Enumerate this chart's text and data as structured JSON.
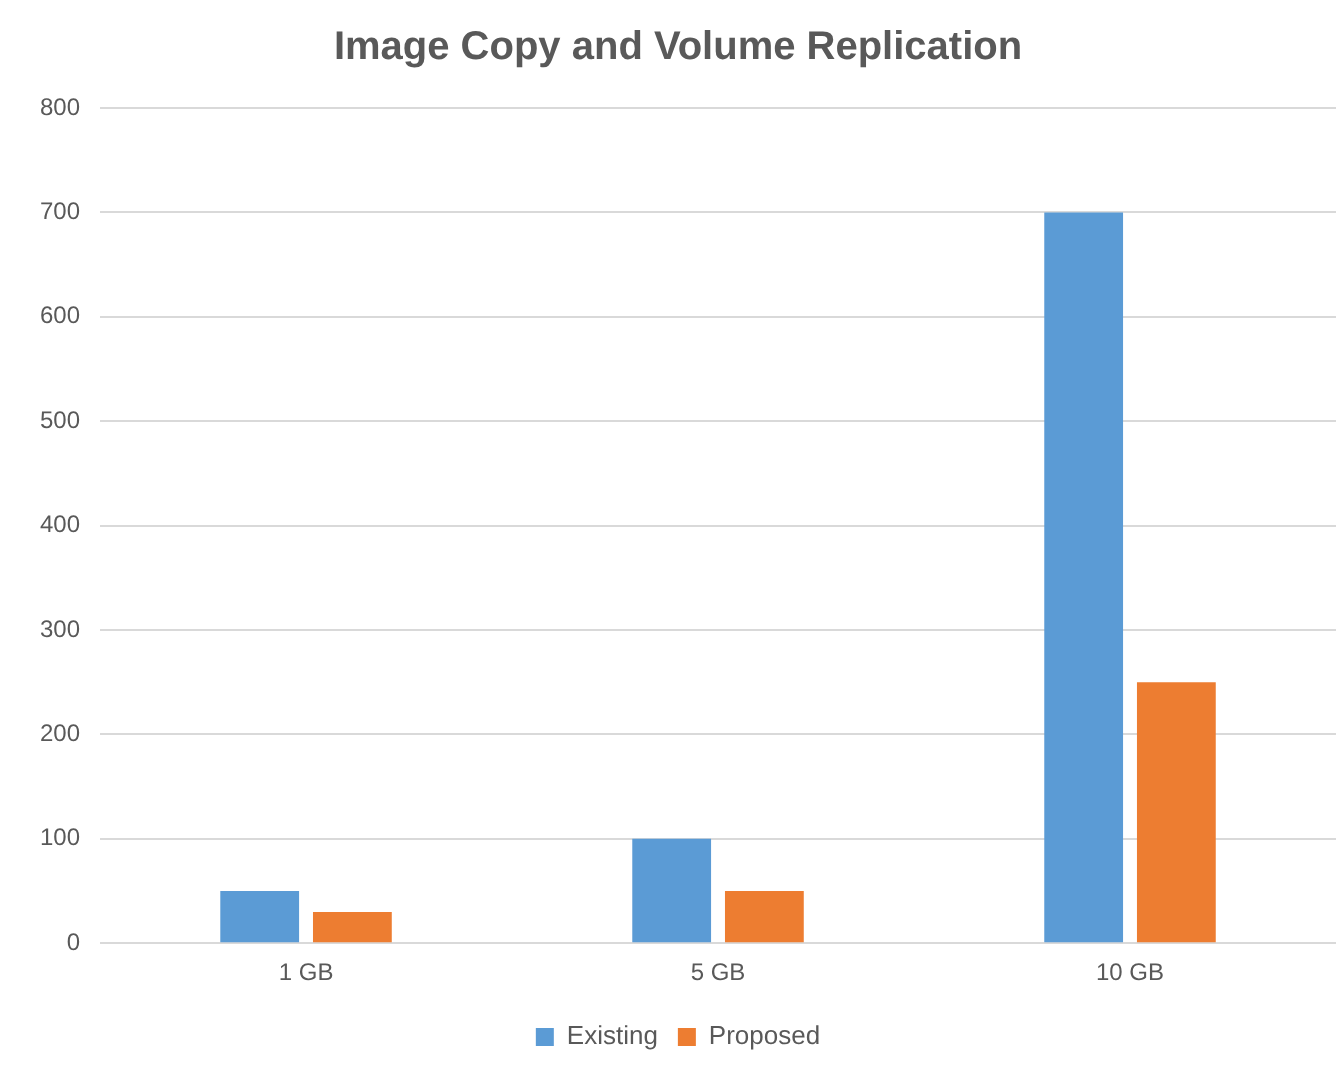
{
  "chart_data": {
    "type": "bar",
    "title": "Image Copy and Volume Replication",
    "categories": [
      "1 GB",
      "5 GB",
      "10 GB"
    ],
    "series": [
      {
        "name": "Existing",
        "color": "#5b9bd5",
        "values": [
          50,
          100,
          700
        ]
      },
      {
        "name": "Proposed",
        "color": "#ed7d31",
        "values": [
          30,
          50,
          250
        ]
      }
    ],
    "ylim": [
      0,
      800
    ],
    "yticks": [
      0,
      100,
      200,
      300,
      400,
      500,
      600,
      700,
      800
    ],
    "grid": "y",
    "legend": "bottom"
  }
}
